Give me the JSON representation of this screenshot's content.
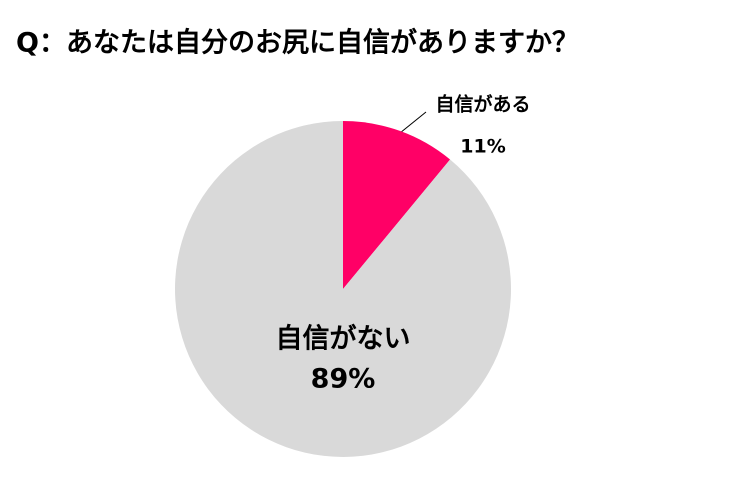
{
  "chart_data": {
    "type": "pie",
    "title": "Q：あなたは自分のお尻に自信がありますか？",
    "categories": [
      "自信がある",
      "自信がない"
    ],
    "values": [
      11,
      89
    ],
    "value_labels": [
      "11%",
      "89%"
    ],
    "colors": [
      "#ff0066",
      "#d9d9d9"
    ]
  }
}
